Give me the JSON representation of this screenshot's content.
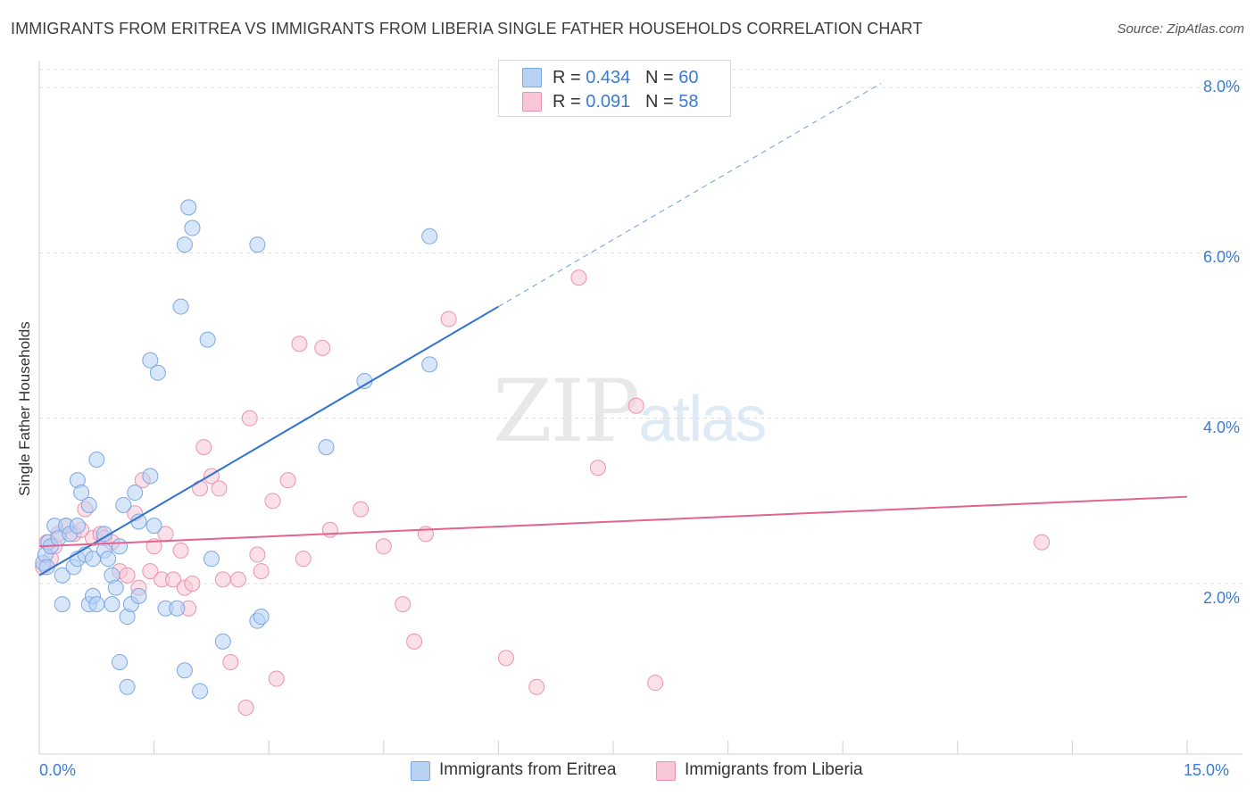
{
  "title": "IMMIGRANTS FROM ERITREA VS IMMIGRANTS FROM LIBERIA SINGLE FATHER HOUSEHOLDS CORRELATION CHART",
  "source": "Source: ZipAtlas.com",
  "watermark": {
    "zip": "ZIP",
    "atlas": "atlas"
  },
  "legend_top": [
    {
      "r_label": "R = ",
      "r_value": "0.434",
      "n_label": "N = ",
      "n_value": "60"
    },
    {
      "r_label": "R = ",
      "r_value": "0.091",
      "n_label": "N = ",
      "n_value": "58"
    }
  ],
  "legend_bottom": [
    "Immigrants from Eritrea",
    "Immigrants from Liberia"
  ],
  "axis_labels": {
    "x_min": "0.0%",
    "x_max": "15.0%",
    "y_ticks": [
      "2.0%",
      "4.0%",
      "6.0%",
      "8.0%"
    ],
    "y_title": "Single Father Households"
  },
  "colors": {
    "eritrea_fill": "#b8d2f5",
    "eritrea_stroke": "#7aa7e3",
    "eritrea_line": "#2f72d0",
    "liberia_fill": "#f8c6d6",
    "liberia_stroke": "#ea93b0",
    "liberia_line": "#e2638d",
    "axis_text": "#3a7bd5",
    "grid": "#dcdcdc"
  },
  "chart_data": {
    "type": "scatter",
    "title": "IMMIGRANTS FROM ERITREA VS IMMIGRANTS FROM LIBERIA SINGLE FATHER HOUSEHOLDS CORRELATION CHART",
    "xlabel": "",
    "ylabel": "Single Father Households",
    "xlim": [
      0,
      15
    ],
    "ylim": [
      0,
      8.4
    ],
    "y_ticks": [
      2,
      4,
      6,
      8
    ],
    "grid": "horizontal dashed",
    "legend_placement": "top-center",
    "series": [
      {
        "name": "Immigrants from Eritrea",
        "R": 0.434,
        "N": 60,
        "trend": {
          "x0": 0.0,
          "y0": 2.1,
          "x1": 6.0,
          "y1": 5.35,
          "dashed_to_x": 11.0,
          "dashed_to_y": 8.05
        },
        "points": [
          [
            0.05,
            2.25
          ],
          [
            0.08,
            2.35
          ],
          [
            0.12,
            2.5
          ],
          [
            0.1,
            2.2
          ],
          [
            0.15,
            2.45
          ],
          [
            0.2,
            2.7
          ],
          [
            0.25,
            2.55
          ],
          [
            0.3,
            2.1
          ],
          [
            0.3,
            1.75
          ],
          [
            0.35,
            2.7
          ],
          [
            0.4,
            2.6
          ],
          [
            0.45,
            2.2
          ],
          [
            0.5,
            2.7
          ],
          [
            0.5,
            2.3
          ],
          [
            0.5,
            3.25
          ],
          [
            0.55,
            3.1
          ],
          [
            0.6,
            2.35
          ],
          [
            0.65,
            2.95
          ],
          [
            0.65,
            1.75
          ],
          [
            0.7,
            2.3
          ],
          [
            0.7,
            1.85
          ],
          [
            0.75,
            1.75
          ],
          [
            0.75,
            3.5
          ],
          [
            0.85,
            2.6
          ],
          [
            0.85,
            2.4
          ],
          [
            0.9,
            2.3
          ],
          [
            0.95,
            2.1
          ],
          [
            0.95,
            1.75
          ],
          [
            1.0,
            1.95
          ],
          [
            1.05,
            2.45
          ],
          [
            1.05,
            1.05
          ],
          [
            1.1,
            2.95
          ],
          [
            1.15,
            0.75
          ],
          [
            1.15,
            1.6
          ],
          [
            1.2,
            1.75
          ],
          [
            1.25,
            3.1
          ],
          [
            1.3,
            2.75
          ],
          [
            1.3,
            1.85
          ],
          [
            1.45,
            4.7
          ],
          [
            1.45,
            3.3
          ],
          [
            1.5,
            2.7
          ],
          [
            1.55,
            4.55
          ],
          [
            1.65,
            1.7
          ],
          [
            1.8,
            1.7
          ],
          [
            1.85,
            5.35
          ],
          [
            1.9,
            6.1
          ],
          [
            1.9,
            0.95
          ],
          [
            1.95,
            6.55
          ],
          [
            2.0,
            6.3
          ],
          [
            2.1,
            0.7
          ],
          [
            2.2,
            4.95
          ],
          [
            2.25,
            2.3
          ],
          [
            2.4,
            1.3
          ],
          [
            2.85,
            1.55
          ],
          [
            2.9,
            1.6
          ],
          [
            2.85,
            6.1
          ],
          [
            3.75,
            3.65
          ],
          [
            4.25,
            4.45
          ],
          [
            5.1,
            6.2
          ],
          [
            5.1,
            4.65
          ]
        ]
      },
      {
        "name": "Immigrants from Liberia",
        "R": 0.091,
        "N": 58,
        "trend": {
          "x0": 0.0,
          "y0": 2.45,
          "x1": 15.0,
          "y1": 3.05
        },
        "points": [
          [
            0.05,
            2.2
          ],
          [
            0.1,
            2.5
          ],
          [
            0.15,
            2.3
          ],
          [
            0.2,
            2.45
          ],
          [
            0.25,
            2.6
          ],
          [
            0.35,
            2.7
          ],
          [
            0.45,
            2.6
          ],
          [
            0.55,
            2.65
          ],
          [
            0.6,
            2.9
          ],
          [
            0.7,
            2.55
          ],
          [
            0.8,
            2.6
          ],
          [
            0.85,
            2.55
          ],
          [
            0.95,
            2.5
          ],
          [
            1.05,
            2.15
          ],
          [
            1.15,
            2.1
          ],
          [
            1.25,
            2.85
          ],
          [
            1.3,
            1.95
          ],
          [
            1.35,
            3.25
          ],
          [
            1.45,
            2.15
          ],
          [
            1.5,
            2.45
          ],
          [
            1.6,
            2.05
          ],
          [
            1.65,
            2.6
          ],
          [
            1.75,
            2.05
          ],
          [
            1.85,
            2.4
          ],
          [
            1.9,
            1.95
          ],
          [
            1.95,
            1.7
          ],
          [
            2.0,
            2.0
          ],
          [
            2.1,
            3.15
          ],
          [
            2.15,
            3.65
          ],
          [
            2.25,
            3.3
          ],
          [
            2.35,
            3.15
          ],
          [
            2.4,
            2.05
          ],
          [
            2.5,
            1.05
          ],
          [
            2.6,
            2.05
          ],
          [
            2.7,
            0.5
          ],
          [
            2.75,
            4.0
          ],
          [
            2.85,
            2.35
          ],
          [
            2.9,
            2.15
          ],
          [
            3.05,
            3.0
          ],
          [
            3.1,
            0.85
          ],
          [
            3.25,
            3.25
          ],
          [
            3.4,
            4.9
          ],
          [
            3.45,
            2.3
          ],
          [
            3.7,
            4.85
          ],
          [
            3.8,
            2.65
          ],
          [
            4.2,
            2.9
          ],
          [
            4.5,
            2.45
          ],
          [
            4.75,
            1.75
          ],
          [
            4.9,
            1.3
          ],
          [
            5.05,
            2.6
          ],
          [
            5.35,
            5.2
          ],
          [
            6.1,
            1.1
          ],
          [
            6.5,
            0.75
          ],
          [
            7.05,
            5.7
          ],
          [
            7.3,
            3.4
          ],
          [
            7.8,
            4.15
          ],
          [
            8.05,
            0.8
          ],
          [
            13.1,
            2.5
          ]
        ]
      }
    ]
  }
}
